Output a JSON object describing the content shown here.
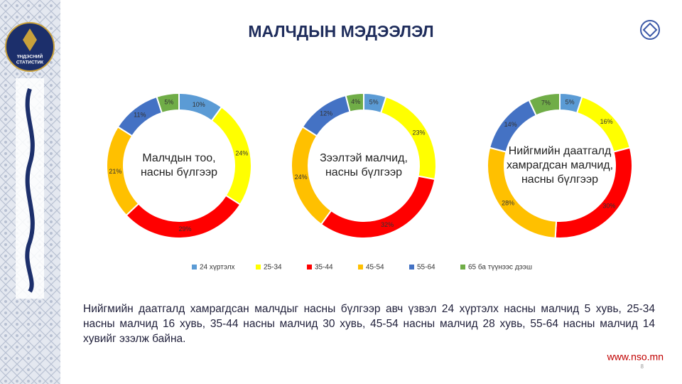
{
  "title": "МАЛЧДЫН МЭДЭЭЛЭЛ",
  "logo_text": [
    "ҮНДЭСНИЙ",
    "СТАТИСТИК"
  ],
  "chart_data": [
    {
      "type": "donut",
      "title": [
        "Малчдын тоо,",
        "насны бүлгээр"
      ],
      "categories": [
        "24 хүртэлх",
        "25-34",
        "35-44",
        "45-54",
        "55-64",
        "65 ба түүнээс дээш"
      ],
      "values": [
        10,
        24,
        29,
        21,
        11,
        5
      ],
      "value_labels": [
        "10%",
        "24%",
        "29%",
        "21%",
        "11%",
        "5%"
      ],
      "colors": [
        "#5b9bd5",
        "#ffff00",
        "#ff0000",
        "#ffc000",
        "#4472c4",
        "#70ad47"
      ]
    },
    {
      "type": "donut",
      "title": [
        "Зээлтэй малчид,",
        "насны бүлгээр"
      ],
      "categories": [
        "24 хүртэлх",
        "25-34",
        "35-44",
        "45-54",
        "55-64",
        "65 ба түүнээс дээш"
      ],
      "values": [
        5,
        23,
        32,
        24,
        12,
        4
      ],
      "value_labels": [
        "5%",
        "23%",
        "32%",
        "24%",
        "12%",
        "4%"
      ],
      "colors": [
        "#5b9bd5",
        "#ffff00",
        "#ff0000",
        "#ffc000",
        "#4472c4",
        "#70ad47"
      ]
    },
    {
      "type": "donut",
      "title": [
        "Нийгмийн даатгалд",
        "хамрагдсан малчид,",
        "насны бүлгээр"
      ],
      "categories": [
        "24 хүртэлх",
        "25-34",
        "35-44",
        "45-54",
        "55-64",
        "65 ба түүнээс дээш"
      ],
      "values": [
        5,
        16,
        30,
        28,
        14,
        7
      ],
      "value_labels": [
        "5%",
        "16%",
        "30%",
        "28%",
        "14%",
        "7%"
      ],
      "colors": [
        "#5b9bd5",
        "#ffff00",
        "#ff0000",
        "#ffc000",
        "#4472c4",
        "#70ad47"
      ]
    }
  ],
  "paragraph": "Нийгмийн даатгалд хамрагдсан малчдыг насны бүлгээр авч үзвэл 24 хүртэлх насны малчид 5 хувь, 25-34 насны малчид 16 хувь, 35-44 насны малчид 30 хувь, 45-54 насны малчид 28 хувь, 55-64 насны малчид 14 хувийг эзэлж байна.",
  "footer": {
    "url": "www.nso.mn",
    "page": "8"
  }
}
